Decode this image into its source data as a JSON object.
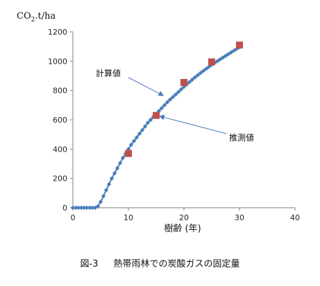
{
  "chart_data": {
    "type": "line",
    "ylabel_main": "CO",
    "ylabel_sub": "2",
    "ylabel_tail": ".t/ha",
    "xlabel": "樹齢 (年)",
    "xlim": [
      0,
      40
    ],
    "ylim": [
      0,
      1200
    ],
    "x_ticks": [
      0,
      10,
      20,
      30,
      40
    ],
    "y_ticks": [
      0,
      200,
      400,
      600,
      800,
      1000,
      1200
    ],
    "grid": false,
    "series": [
      {
        "name": "計算値",
        "marker": "diamond",
        "color": "#4a7ebb",
        "x": [
          0,
          0.5,
          1,
          1.5,
          2,
          2.5,
          3,
          3.5,
          4,
          4.5,
          5,
          5.5,
          6,
          6.5,
          7,
          7.5,
          8,
          8.5,
          9,
          9.5,
          10,
          10.5,
          11,
          11.5,
          12,
          12.5,
          13,
          13.5,
          14,
          14.5,
          15,
          15.5,
          16,
          16.5,
          17,
          17.5,
          18,
          18.5,
          19,
          19.5,
          20,
          20.5,
          21,
          21.5,
          22,
          22.5,
          23,
          23.5,
          24,
          24.5,
          25,
          25.5,
          26,
          26.5,
          27,
          27.5,
          28,
          28.5,
          29,
          29.5,
          30
        ],
        "y": [
          0,
          0,
          0,
          0,
          0,
          0,
          0,
          0,
          0,
          10,
          40,
          80,
          120,
          160,
          200,
          235,
          270,
          305,
          340,
          370,
          400,
          430,
          455,
          480,
          505,
          530,
          555,
          580,
          600,
          620,
          640,
          660,
          680,
          700,
          720,
          738,
          755,
          772,
          790,
          808,
          825,
          842,
          858,
          874,
          890,
          905,
          920,
          934,
          948,
          962,
          975,
          988,
          1000,
          1012,
          1024,
          1036,
          1048,
          1060,
          1072,
          1084,
          1095
        ]
      },
      {
        "name": "推測値",
        "marker": "square",
        "color": "#c0504d",
        "x": [
          10,
          15,
          20,
          25,
          30
        ],
        "y": [
          370,
          630,
          855,
          995,
          1110
        ]
      }
    ],
    "annotations": [
      {
        "text": "計算値",
        "target_series": 0
      },
      {
        "text": "推測値",
        "target_series": 1
      }
    ],
    "caption_fig": "図-3",
    "caption_text": "熱帯雨林での炭酸ガスの固定量"
  }
}
